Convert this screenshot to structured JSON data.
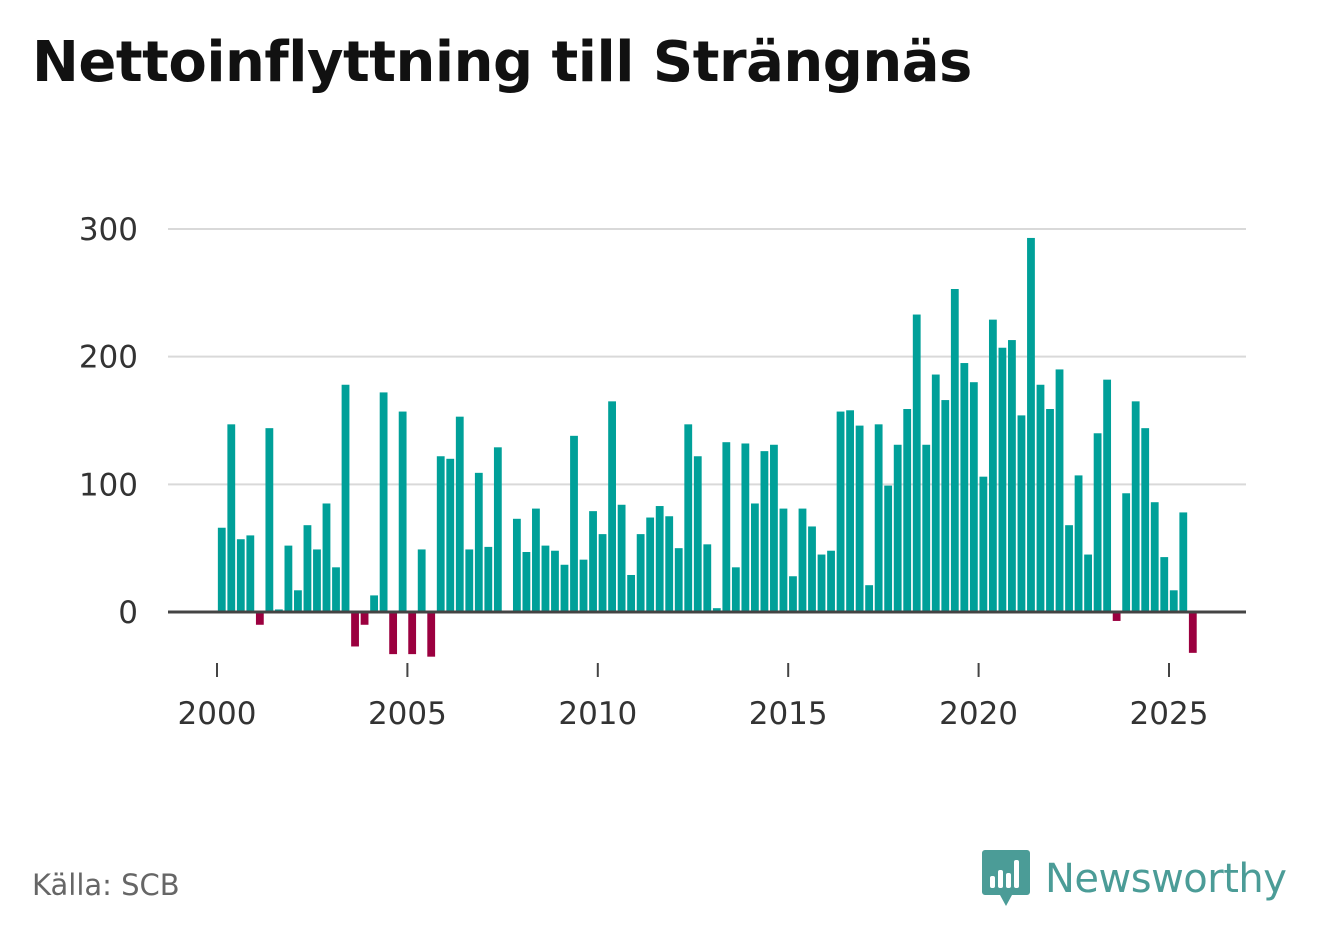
{
  "title": "Nettoinflyttning till Strängnäs",
  "source": "Källa: SCB",
  "brand": {
    "name": "Newsworthy",
    "icon": "newsworthy-logo-icon",
    "color": "#4b9c97"
  },
  "colors": {
    "positive": "#00a099",
    "negative": "#9b003f",
    "grid": "#d9d9d9",
    "zero_line": "#444444"
  },
  "chart_data": {
    "type": "bar",
    "title": "Nettoinflyttning till Strängnäs",
    "xlabel": "",
    "ylabel": "",
    "frequency": "quarterly",
    "x_start": 2000.0,
    "x_step": 0.25,
    "ylim": [
      -40,
      300
    ],
    "yticks": [
      0,
      100,
      200,
      300
    ],
    "xticks": [
      2000,
      2005,
      2010,
      2015,
      2020,
      2025
    ],
    "values": [
      66,
      147,
      57,
      60,
      -10,
      144,
      2,
      52,
      17,
      68,
      49,
      85,
      35,
      178,
      -27,
      -10,
      13,
      172,
      -33,
      157,
      -33,
      49,
      -35,
      122,
      120,
      153,
      49,
      109,
      51,
      129,
      0,
      73,
      47,
      81,
      52,
      48,
      37,
      138,
      41,
      79,
      61,
      165,
      84,
      29,
      61,
      74,
      83,
      75,
      50,
      147,
      122,
      53,
      3,
      133,
      35,
      132,
      85,
      126,
      131,
      81,
      28,
      81,
      67,
      45,
      48,
      157,
      158,
      146,
      21,
      147,
      99,
      131,
      159,
      233,
      131,
      186,
      166,
      253,
      195,
      180,
      106,
      229,
      207,
      213,
      154,
      293,
      178,
      159,
      190,
      68,
      107,
      45,
      140,
      182,
      -7,
      93,
      165,
      144,
      86,
      43,
      17,
      78,
      -32
    ]
  }
}
